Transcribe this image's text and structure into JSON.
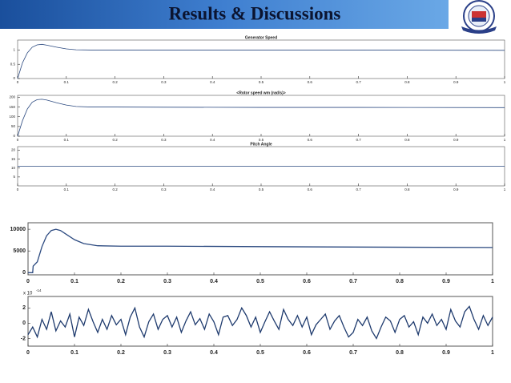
{
  "header": {
    "title": "Results & Discussions"
  },
  "chart_data": [
    {
      "type": "line",
      "title": "Generator Speed",
      "x": [
        0,
        0.01,
        0.02,
        0.03,
        0.04,
        0.05,
        0.06,
        0.08,
        0.1,
        0.12,
        0.15,
        0.2,
        0.3,
        0.5,
        0.7,
        1
      ],
      "series": [
        {
          "color": "#2c4a80",
          "values": [
            0,
            0.55,
            0.9,
            1.1,
            1.18,
            1.2,
            1.17,
            1.1,
            1.04,
            1.01,
            1.0,
            1.0,
            1.0,
            1.0,
            1.0,
            0.99
          ]
        }
      ],
      "xlim": [
        0,
        1
      ],
      "xticks": [
        0,
        0.1,
        0.2,
        0.3,
        0.4,
        0.5,
        0.6,
        0.7,
        0.8,
        0.9,
        1
      ],
      "ylim": [
        0,
        1.35
      ],
      "yticks": [
        0,
        0.5,
        1
      ]
    },
    {
      "type": "line",
      "title": "<Rotor speed wm (rad/s)>",
      "x": [
        0,
        0.01,
        0.02,
        0.03,
        0.04,
        0.05,
        0.06,
        0.08,
        0.1,
        0.12,
        0.15,
        0.2,
        0.3,
        0.5,
        0.7,
        1
      ],
      "series": [
        {
          "color": "#2c4a80",
          "values": [
            0,
            80,
            140,
            175,
            188,
            190,
            186,
            172,
            160,
            153,
            150,
            150,
            149,
            148,
            148,
            147
          ]
        }
      ],
      "xlim": [
        0,
        1
      ],
      "xticks": [
        0,
        0.1,
        0.2,
        0.3,
        0.4,
        0.5,
        0.6,
        0.7,
        0.8,
        0.9,
        1
      ],
      "ylim": [
        0,
        210
      ],
      "yticks": [
        0,
        50,
        100,
        150,
        200
      ]
    },
    {
      "type": "line",
      "title": "Pitch Angle",
      "x": [
        0,
        1
      ],
      "series": [
        {
          "color": "#2c4a80",
          "values": [
            11,
            11
          ]
        }
      ],
      "xlim": [
        0,
        1
      ],
      "xticks": [
        0,
        0.1,
        0.2,
        0.3,
        0.4,
        0.5,
        0.6,
        0.7,
        0.8,
        0.9,
        1
      ],
      "ylim": [
        0,
        22
      ],
      "yticks": [
        5,
        10,
        15,
        20
      ]
    },
    {
      "type": "line",
      "x": [
        0,
        0.01,
        0.011,
        0.02,
        0.03,
        0.04,
        0.05,
        0.06,
        0.07,
        0.08,
        0.1,
        0.12,
        0.15,
        0.2,
        0.3,
        0.5,
        0.7,
        1
      ],
      "series": [
        {
          "color": "#2c4a80",
          "values": [
            0,
            0,
            1500,
            2500,
            6000,
            8500,
            9700,
            10000,
            9700,
            9000,
            7600,
            6700,
            6200,
            6100,
            6100,
            6000,
            5900,
            5800
          ]
        }
      ],
      "xlim": [
        0,
        1
      ],
      "xticks": [
        0,
        0.1,
        0.2,
        0.3,
        0.4,
        0.5,
        0.6,
        0.7,
        0.8,
        0.9,
        1
      ],
      "ylim": [
        -500,
        11500
      ],
      "yticks": [
        0,
        5000,
        10000
      ]
    },
    {
      "type": "line",
      "y_multiplier": "x 10",
      "y_exponent": "-14",
      "x": [
        0,
        0.01,
        0.02,
        0.03,
        0.04,
        0.05,
        0.06,
        0.07,
        0.08,
        0.09,
        0.1,
        0.11,
        0.12,
        0.13,
        0.14,
        0.15,
        0.16,
        0.17,
        0.18,
        0.19,
        0.2,
        0.21,
        0.22,
        0.23,
        0.24,
        0.25,
        0.26,
        0.27,
        0.28,
        0.29,
        0.3,
        0.31,
        0.32,
        0.33,
        0.34,
        0.35,
        0.36,
        0.37,
        0.38,
        0.39,
        0.4,
        0.41,
        0.42,
        0.43,
        0.44,
        0.45,
        0.46,
        0.47,
        0.48,
        0.49,
        0.5,
        0.51,
        0.52,
        0.53,
        0.54,
        0.55,
        0.56,
        0.57,
        0.58,
        0.59,
        0.6,
        0.61,
        0.62,
        0.63,
        0.64,
        0.65,
        0.66,
        0.67,
        0.68,
        0.69,
        0.7,
        0.71,
        0.72,
        0.73,
        0.74,
        0.75,
        0.76,
        0.77,
        0.78,
        0.79,
        0.8,
        0.81,
        0.82,
        0.83,
        0.84,
        0.85,
        0.86,
        0.87,
        0.88,
        0.89,
        0.9,
        0.91,
        0.92,
        0.93,
        0.94,
        0.95,
        0.96,
        0.97,
        0.98,
        0.99,
        1
      ],
      "series": [
        {
          "color": "#1f3b6e",
          "values": [
            -1.5,
            -0.5,
            -1.8,
            0.5,
            -0.8,
            1.5,
            -1,
            0.3,
            -0.5,
            1.2,
            -1.8,
            0.8,
            -0.3,
            1.8,
            0.2,
            -1.2,
            0.5,
            -0.8,
            1,
            -0.2,
            0.5,
            -1.5,
            0.8,
            2,
            -0.5,
            -1.8,
            0.2,
            1.2,
            -0.8,
            0.5,
            1,
            -0.5,
            0.8,
            -1.2,
            0.3,
            1.5,
            -0.2,
            0.6,
            -0.8,
            1.2,
            0.2,
            -1.5,
            0.8,
            1,
            -0.3,
            0.5,
            2,
            1,
            -0.5,
            0.8,
            -1.2,
            0.2,
            1.5,
            0.3,
            -0.8,
            1.8,
            0.5,
            -0.3,
            1,
            -0.5,
            0.8,
            -1.5,
            -0.2,
            0.5,
            1.2,
            -0.8,
            0.3,
            1,
            -0.5,
            -1.8,
            -1.2,
            0.5,
            -0.3,
            0.8,
            -1,
            -2,
            -0.5,
            0.8,
            0.3,
            -1.2,
            0.5,
            1,
            -0.5,
            0.2,
            -1.5,
            0.8,
            0,
            1.2,
            -0.3,
            0.5,
            -0.8,
            1.8,
            0.3,
            -0.5,
            1.5,
            2.2,
            0.5,
            -0.8,
            1,
            -0.3,
            0.8
          ]
        }
      ],
      "xlim": [
        0,
        1
      ],
      "xticks": [
        0,
        0.1,
        0.2,
        0.3,
        0.4,
        0.5,
        0.6,
        0.7,
        0.8,
        0.9,
        1
      ],
      "ylim": [
        -3,
        3.5
      ],
      "yticks": [
        -2,
        0,
        2
      ]
    }
  ]
}
